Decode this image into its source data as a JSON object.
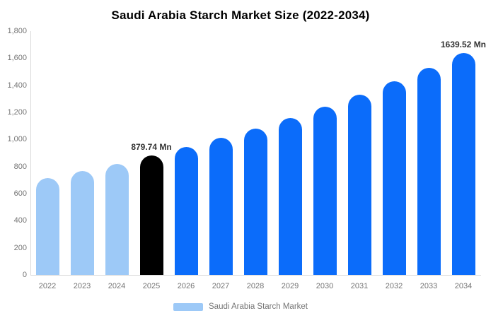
{
  "title": "Saudi Arabia Starch Market Size (2022-2034)",
  "colors": {
    "historical": "#9DC9F7",
    "base_year": "#000000",
    "forecast": "#0B6CFA",
    "axis_line": "#D9D9D9",
    "tick_text": "#757575",
    "annotation_text": "#333333",
    "title_text": "#000000",
    "background": "#FFFFFF"
  },
  "legend": {
    "label": "Saudi Arabia Starch Market",
    "swatch_color": "#9DC9F7",
    "position": "bottom"
  },
  "chart_data": {
    "type": "bar",
    "title": "Saudi Arabia Starch Market Size (2022-2034)",
    "xlabel": "",
    "ylabel": "",
    "unit": "Mn",
    "categories": [
      "2022",
      "2023",
      "2024",
      "2025",
      "2026",
      "2027",
      "2028",
      "2029",
      "2030",
      "2031",
      "2032",
      "2033",
      "2034"
    ],
    "values": [
      715.3,
      766.5,
      821.4,
      879.74,
      942.7,
      1010.2,
      1082.5,
      1160.1,
      1243.2,
      1332.2,
      1427.6,
      1529.8,
      1639.52
    ],
    "color_roles": [
      "historical",
      "historical",
      "historical",
      "base_year",
      "forecast",
      "forecast",
      "forecast",
      "forecast",
      "forecast",
      "forecast",
      "forecast",
      "forecast",
      "forecast"
    ],
    "ylim": [
      0,
      1800
    ],
    "ytick_interval": 200,
    "ytick_labels": [
      "0",
      "200",
      "400",
      "600",
      "800",
      "1,000",
      "1,200",
      "1,400",
      "1,600",
      "1,800"
    ],
    "grid": false,
    "legend_entries": [
      "Saudi Arabia Starch Market"
    ],
    "legend_position": "bottom",
    "annotations": [
      {
        "category": "2025",
        "text": "879.74 Mn"
      },
      {
        "category": "2034",
        "text": "1639.52 Mn"
      }
    ]
  }
}
